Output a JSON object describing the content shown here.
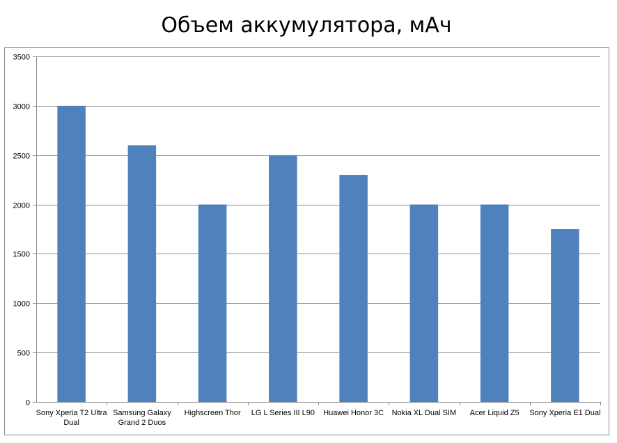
{
  "chart_data": {
    "type": "bar",
    "title": "Объем аккумулятора, мАч",
    "xlabel": "",
    "ylabel": "",
    "ylim": [
      0,
      3500
    ],
    "yticks": [
      0,
      500,
      1000,
      1500,
      2000,
      2500,
      3000,
      3500
    ],
    "grid": true,
    "legend": "none",
    "categories": [
      [
        "Sony Xperia T2 Ultra",
        "Dual"
      ],
      [
        "Samsung Galaxy",
        "Grand 2 Duos"
      ],
      [
        "Highscreen Thor"
      ],
      [
        "LG L Series III L90"
      ],
      [
        "Huawei Honor 3C"
      ],
      [
        "Nokia XL Dual SIM"
      ],
      [
        "Acer Liquid Z5"
      ],
      [
        "Sony Xperia E1 Dual"
      ]
    ],
    "values": [
      3000,
      2600,
      2000,
      2500,
      2300,
      2000,
      2000,
      1750
    ],
    "colors": {
      "bar": "#4F81BD",
      "grid": "#8C8C8C",
      "axis": "#8C8C8C",
      "frame": "#8C8C8C"
    }
  }
}
